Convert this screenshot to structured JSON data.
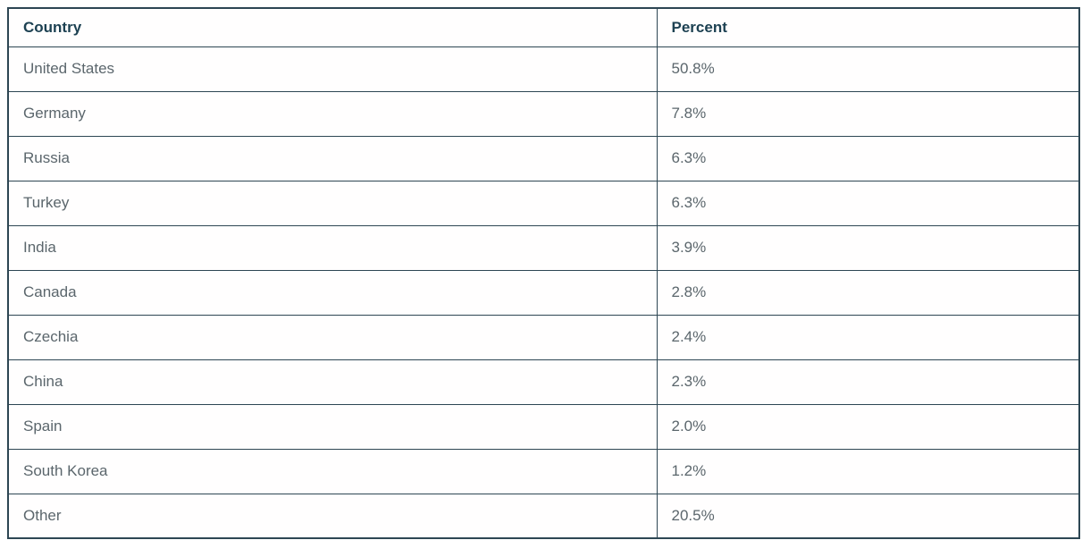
{
  "chart_data": {
    "type": "table",
    "title": "",
    "categories": [
      "United States",
      "Germany",
      "Russia",
      "Turkey",
      "India",
      "Canada",
      "Czechia",
      "China",
      "Spain",
      "South Korea",
      "Other"
    ],
    "values": [
      50.8,
      7.8,
      6.3,
      6.3,
      3.9,
      2.8,
      2.4,
      2.3,
      2.0,
      1.2,
      20.5
    ],
    "value_unit": "percent"
  },
  "table": {
    "columns": [
      {
        "label": "Country"
      },
      {
        "label": "Percent"
      }
    ],
    "rows": [
      {
        "country": "United States",
        "percent": "50.8%"
      },
      {
        "country": "Germany",
        "percent": "7.8%"
      },
      {
        "country": "Russia",
        "percent": "6.3%"
      },
      {
        "country": "Turkey",
        "percent": "6.3%"
      },
      {
        "country": "India",
        "percent": "3.9%"
      },
      {
        "country": "Canada",
        "percent": "2.8%"
      },
      {
        "country": "Czechia",
        "percent": "2.4%"
      },
      {
        "country": "China",
        "percent": "2.3%"
      },
      {
        "country": "Spain",
        "percent": "2.0%"
      },
      {
        "country": "South Korea",
        "percent": "1.2%"
      },
      {
        "country": "Other",
        "percent": "20.5%"
      }
    ]
  },
  "colors": {
    "border": "#2d4653",
    "header_text": "#1d4152",
    "body_text": "#5b666c",
    "row_background": "#fffefe",
    "page_background": "#ffffff"
  }
}
